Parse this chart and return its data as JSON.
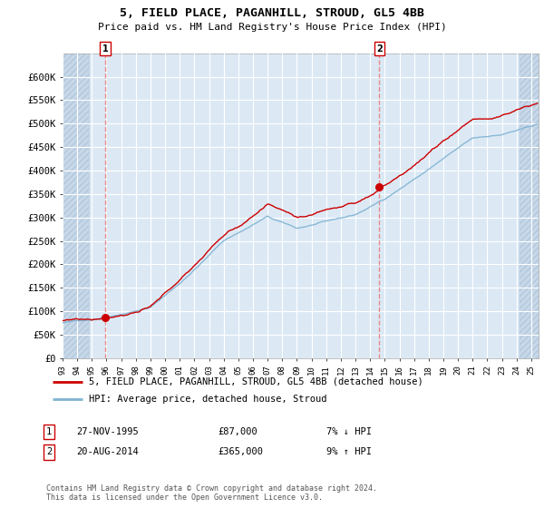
{
  "title": "5, FIELD PLACE, PAGANHILL, STROUD, GL5 4BB",
  "subtitle": "Price paid vs. HM Land Registry's House Price Index (HPI)",
  "ylabel_ticks": [
    "£0",
    "£50K",
    "£100K",
    "£150K",
    "£200K",
    "£250K",
    "£300K",
    "£350K",
    "£400K",
    "£450K",
    "£500K",
    "£550K",
    "£600K"
  ],
  "ylim": [
    0,
    650000
  ],
  "ytick_vals": [
    0,
    50000,
    100000,
    150000,
    200000,
    250000,
    300000,
    350000,
    400000,
    450000,
    500000,
    550000,
    600000
  ],
  "hpi_color": "#7fb3d3",
  "price_color": "#cc0000",
  "vline_color": "#e88080",
  "dot_color": "#cc0000",
  "purchase1_year": 1995.92,
  "purchase1_price": 87000,
  "purchase2_year": 2014.63,
  "purchase2_price": 365000,
  "legend_line1": "5, FIELD PLACE, PAGANHILL, STROUD, GL5 4BB (detached house)",
  "legend_line2": "HPI: Average price, detached house, Stroud",
  "table_row1_num": "1",
  "table_row1_date": "27-NOV-1995",
  "table_row1_price": "£87,000",
  "table_row1_hpi": "7% ↓ HPI",
  "table_row2_num": "2",
  "table_row2_date": "20-AUG-2014",
  "table_row2_price": "£365,000",
  "table_row2_hpi": "9% ↑ HPI",
  "footer": "Contains HM Land Registry data © Crown copyright and database right 2024.\nThis data is licensed under the Open Government Licence v3.0.",
  "bg_color": "#dce9f5",
  "grid_color": "#ffffff",
  "hatch_zone_color": "#c8d8e8"
}
